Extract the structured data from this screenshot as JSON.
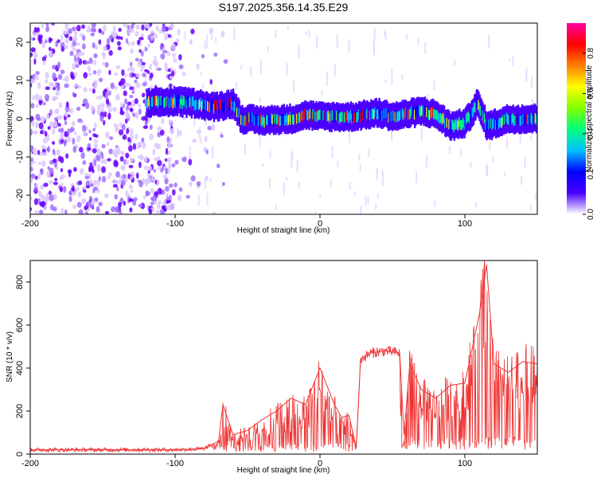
{
  "title": "S197.2025.356.14.35.E29",
  "chart_data": [
    {
      "type": "heatmap",
      "xlabel": "Height of straight line (km)",
      "ylabel": "Frequency (Hz)",
      "xlim": [
        -200,
        150
      ],
      "ylim": [
        -25,
        25
      ],
      "xticks": [
        -200,
        -100,
        0,
        100
      ],
      "xtick_labels": [
        "-200",
        "-100",
        "0",
        "100"
      ],
      "yticks": [
        -20,
        -10,
        0,
        10,
        20
      ],
      "ytick_labels": [
        "-20",
        "-10",
        "0",
        "10",
        "20"
      ],
      "colorbar": {
        "label": "Normalized spectral amplitude",
        "range": [
          0.0,
          0.95
        ],
        "ticks": [
          0.0,
          0.2,
          0.4,
          0.6,
          0.8
        ],
        "tick_labels": [
          "0.0",
          "0.2",
          "0.4",
          "0.6",
          "0.8"
        ],
        "colormap": [
          "#ffffff",
          "#4b00ff",
          "#0000ff",
          "#00c0ff",
          "#00ff80",
          "#80ff00",
          "#ffff00",
          "#ff8000",
          "#ff0000",
          "#ff00a0"
        ]
      },
      "ridge_center_freq": {
        "x": [
          -120,
          -100,
          -85,
          -75,
          -60,
          -55,
          -40,
          -20,
          -10,
          0,
          20,
          40,
          50,
          70,
          80,
          90,
          100,
          108,
          115,
          130,
          150
        ],
        "y": [
          4,
          4.5,
          4,
          3,
          4,
          0,
          -0.5,
          0,
          1,
          0.5,
          0.5,
          1.5,
          0.5,
          2,
          1,
          -2,
          -1,
          4,
          -2,
          0,
          0
        ]
      },
      "noise_region_x": [
        -200,
        -100
      ]
    },
    {
      "type": "line",
      "xlabel": "Height of straight line (km)",
      "ylabel": "SNR (10 * v/v)",
      "xlim": [
        -200,
        150
      ],
      "ylim": [
        0,
        900
      ],
      "xticks": [
        -200,
        -100,
        0,
        100
      ],
      "xtick_labels": [
        "-200",
        "-100",
        "0",
        "100"
      ],
      "yticks": [
        0,
        200,
        400,
        600,
        800
      ],
      "ytick_labels": [
        "0",
        "200",
        "400",
        "600",
        "800"
      ],
      "series": [
        {
          "name": "SNR",
          "color": "#ee3333",
          "x": [
            -200,
            -150,
            -100,
            -80,
            -70,
            -67,
            -60,
            -50,
            -40,
            -30,
            -20,
            -10,
            0,
            10,
            15,
            20,
            25,
            28,
            35,
            45,
            55,
            58,
            62,
            70,
            80,
            90,
            100,
            110,
            115,
            120,
            130,
            140,
            150
          ],
          "y": [
            20,
            20,
            20,
            25,
            60,
            230,
            90,
            110,
            160,
            200,
            260,
            230,
            400,
            230,
            170,
            180,
            30,
            440,
            470,
            480,
            470,
            90,
            420,
            300,
            260,
            320,
            330,
            650,
            880,
            420,
            380,
            430,
            420
          ]
        }
      ]
    }
  ]
}
